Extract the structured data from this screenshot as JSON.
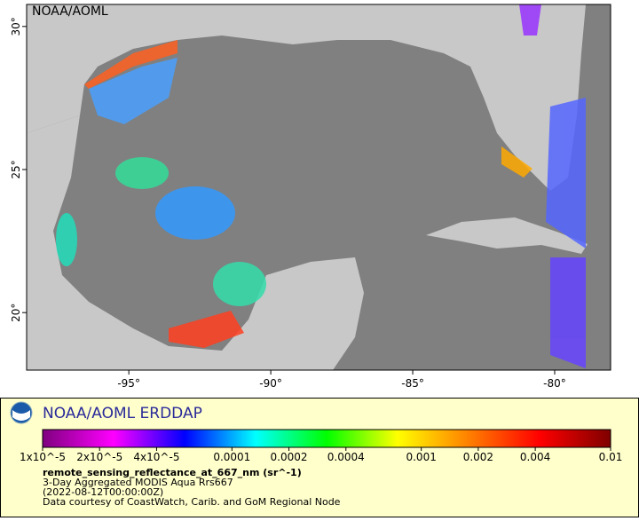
{
  "map": {
    "watermark": "NOAA/AOML",
    "xlim": [
      -98.6,
      -78.03
    ],
    "ylim": [
      17.99,
      30.77
    ],
    "xticks": [
      {
        "value": -95,
        "label": "-95°"
      },
      {
        "value": -90,
        "label": "-90°"
      },
      {
        "value": -85,
        "label": "-85°"
      },
      {
        "value": -80,
        "label": "-80°"
      }
    ],
    "yticks": [
      {
        "value": 20,
        "label": "20°"
      },
      {
        "value": 25,
        "label": "25°"
      },
      {
        "value": 30,
        "label": "30°"
      }
    ]
  },
  "legend": {
    "title": "NOAA/AOML ERDDAP",
    "scale": "log",
    "colorbar_lim": [
      1e-05,
      0.01
    ],
    "colors": [
      "#7f007f",
      "#ff00ff",
      "#0000ff",
      "#00ffff",
      "#00ff00",
      "#ffff00",
      "#ff8000",
      "#ff0000",
      "#7f0000"
    ],
    "colorbar_ticks": [
      {
        "value": 1e-05,
        "label": "1x10^-5"
      },
      {
        "value": 2e-05,
        "label": "2x10^-5"
      },
      {
        "value": 4e-05,
        "label": "4x10^-5"
      },
      {
        "value": 0.0001,
        "label": "0.0001"
      },
      {
        "value": 0.0002,
        "label": "0.0002"
      },
      {
        "value": 0.0004,
        "label": "0.0004"
      },
      {
        "value": 0.001,
        "label": "0.001"
      },
      {
        "value": 0.002,
        "label": "0.002"
      },
      {
        "value": 0.004,
        "label": "0.004"
      },
      {
        "value": 0.01,
        "label": "0.01"
      }
    ],
    "variable": "remote_sensing_reflectance_at_667_nm (sr^-1)",
    "lines": [
      "3-Day Aggregated MODIS Aqua Rrs667",
      "(2022-08-12T00:00:00Z)",
      "Data courtesy of CoastWatch, Carib. and GoM Regional Node"
    ]
  }
}
